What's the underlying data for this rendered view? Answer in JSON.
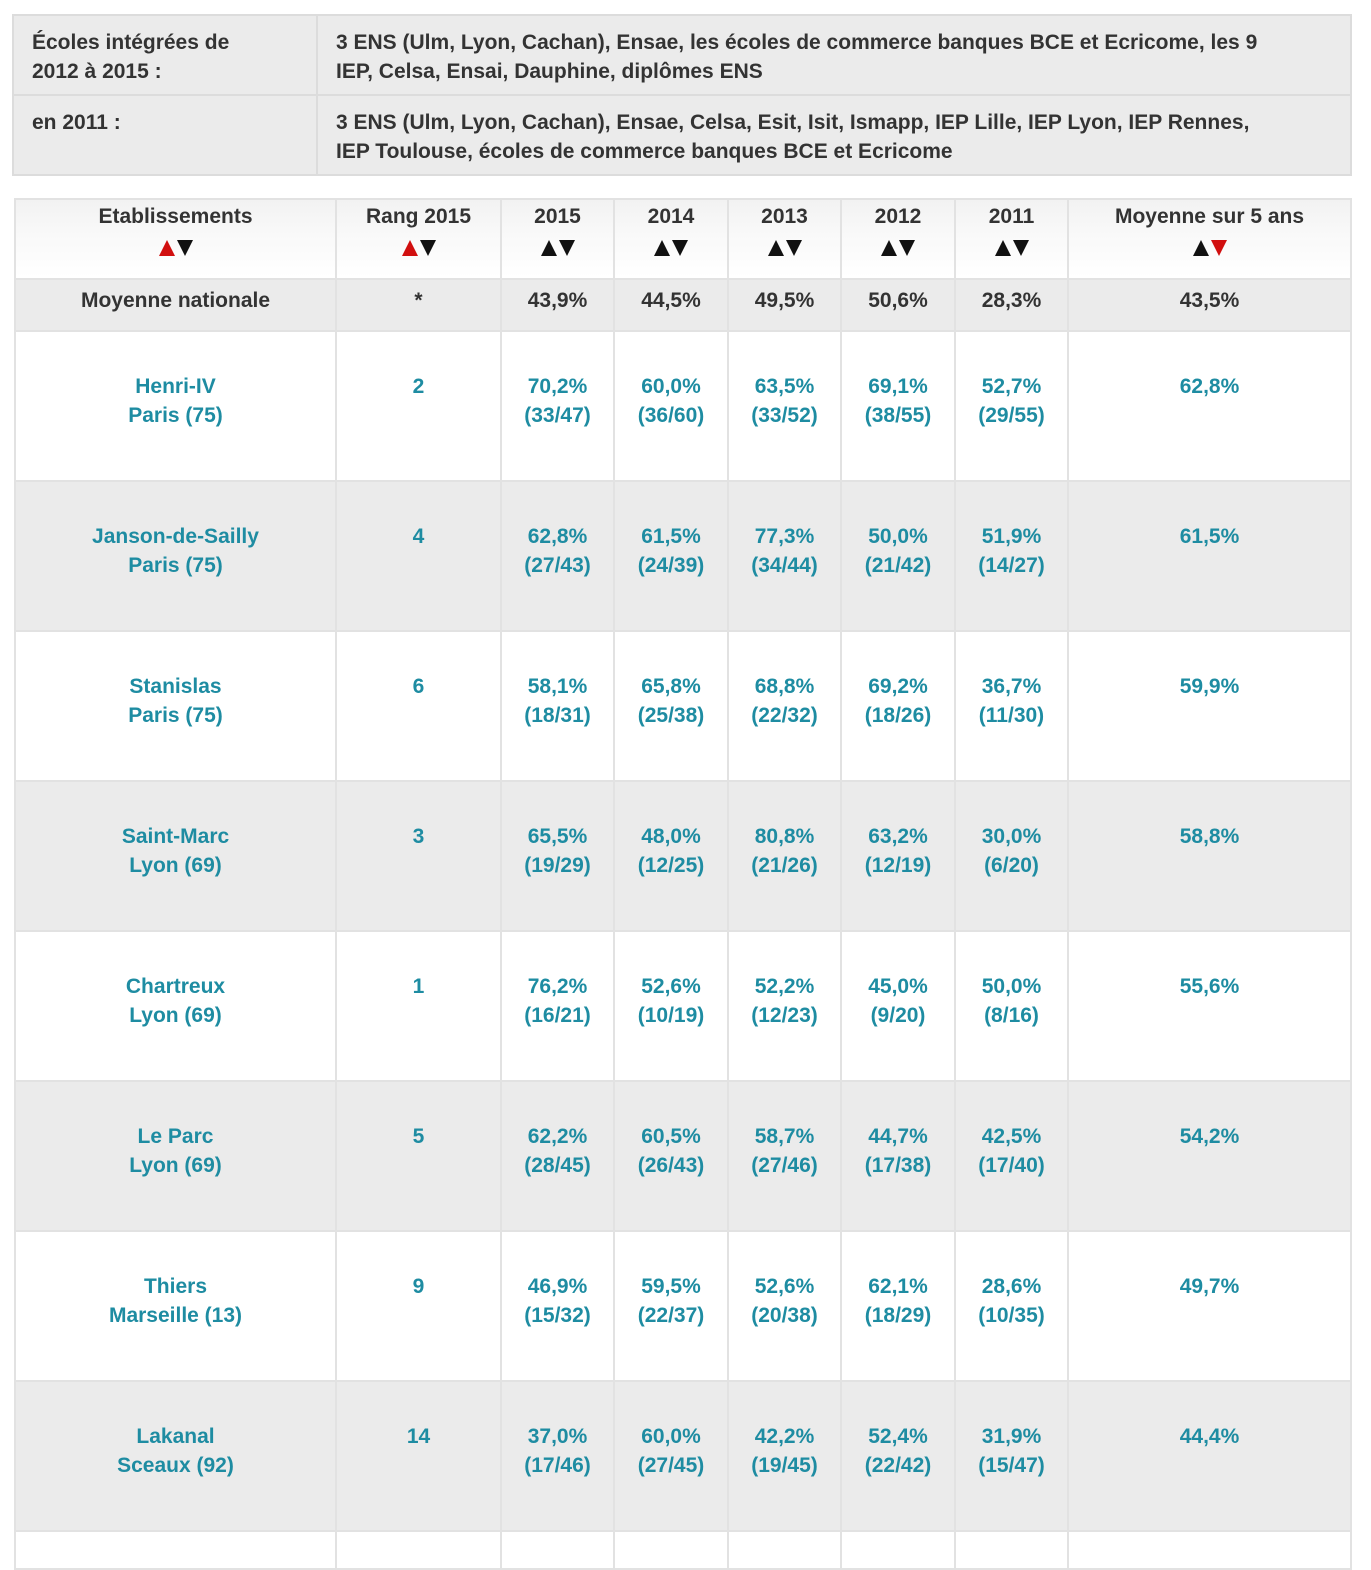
{
  "info": {
    "rows": [
      {
        "label": "Écoles intégrées de\n2012 à 2015 :",
        "value": "3 ENS (Ulm, Lyon, Cachan), Ensae, les écoles de commerce banques BCE et Ecricome, les 9\nIEP, Celsa, Ensai, Dauphine, diplômes ENS"
      },
      {
        "label": "en 2011 :",
        "value": "3 ENS (Ulm, Lyon, Cachan), Ensae, Celsa, Esit, Isit, Ismapp, IEP Lille, IEP Lyon, IEP Rennes,\nIEP Toulouse, écoles de commerce banques BCE et Ecricome"
      }
    ]
  },
  "table": {
    "headers": [
      "Etablissements",
      "Rang 2015",
      "2015",
      "2014",
      "2013",
      "2012",
      "2011",
      "Moyenne sur 5 ans"
    ],
    "sort_colors": {
      "active": "#d10f0f",
      "inactive": "#111111"
    },
    "national": {
      "name": "Moyenne nationale",
      "rank": "*",
      "values": [
        "43,9%",
        "44,5%",
        "49,5%",
        "50,6%",
        "28,3%"
      ],
      "avg": "43,5%"
    },
    "rows": [
      {
        "name": "Henri-IV",
        "city": "Paris (75)",
        "rank": "2",
        "pct": [
          "70,2%",
          "60,0%",
          "63,5%",
          "69,1%",
          "52,7%"
        ],
        "frac": [
          "(33/47)",
          "(36/60)",
          "(33/52)",
          "(38/55)",
          "(29/55)"
        ],
        "avg": "62,8%"
      },
      {
        "name": "Janson-de-Sailly",
        "city": "Paris (75)",
        "rank": "4",
        "pct": [
          "62,8%",
          "61,5%",
          "77,3%",
          "50,0%",
          "51,9%"
        ],
        "frac": [
          "(27/43)",
          "(24/39)",
          "(34/44)",
          "(21/42)",
          "(14/27)"
        ],
        "avg": "61,5%"
      },
      {
        "name": "Stanislas",
        "city": "Paris (75)",
        "rank": "6",
        "pct": [
          "58,1%",
          "65,8%",
          "68,8%",
          "69,2%",
          "36,7%"
        ],
        "frac": [
          "(18/31)",
          "(25/38)",
          "(22/32)",
          "(18/26)",
          "(11/30)"
        ],
        "avg": "59,9%"
      },
      {
        "name": "Saint-Marc",
        "city": "Lyon (69)",
        "rank": "3",
        "pct": [
          "65,5%",
          "48,0%",
          "80,8%",
          "63,2%",
          "30,0%"
        ],
        "frac": [
          "(19/29)",
          "(12/25)",
          "(21/26)",
          "(12/19)",
          "(6/20)"
        ],
        "avg": "58,8%"
      },
      {
        "name": "Chartreux",
        "city": "Lyon (69)",
        "rank": "1",
        "pct": [
          "76,2%",
          "52,6%",
          "52,2%",
          "45,0%",
          "50,0%"
        ],
        "frac": [
          "(16/21)",
          "(10/19)",
          "(12/23)",
          "(9/20)",
          "(8/16)"
        ],
        "avg": "55,6%"
      },
      {
        "name": "Le Parc",
        "city": "Lyon (69)",
        "rank": "5",
        "pct": [
          "62,2%",
          "60,5%",
          "58,7%",
          "44,7%",
          "42,5%"
        ],
        "frac": [
          "(28/45)",
          "(26/43)",
          "(27/46)",
          "(17/38)",
          "(17/40)"
        ],
        "avg": "54,2%"
      },
      {
        "name": "Thiers",
        "city": "Marseille (13)",
        "rank": "9",
        "pct": [
          "46,9%",
          "59,5%",
          "52,6%",
          "62,1%",
          "28,6%"
        ],
        "frac": [
          "(15/32)",
          "(22/37)",
          "(20/38)",
          "(18/29)",
          "(10/35)"
        ],
        "avg": "49,7%"
      },
      {
        "name": "Lakanal",
        "city": "Sceaux (92)",
        "rank": "14",
        "pct": [
          "37,0%",
          "60,0%",
          "42,2%",
          "52,4%",
          "31,9%"
        ],
        "frac": [
          "(17/46)",
          "(27/45)",
          "(19/45)",
          "(22/42)",
          "(15/47)"
        ],
        "avg": "44,4%"
      }
    ]
  }
}
